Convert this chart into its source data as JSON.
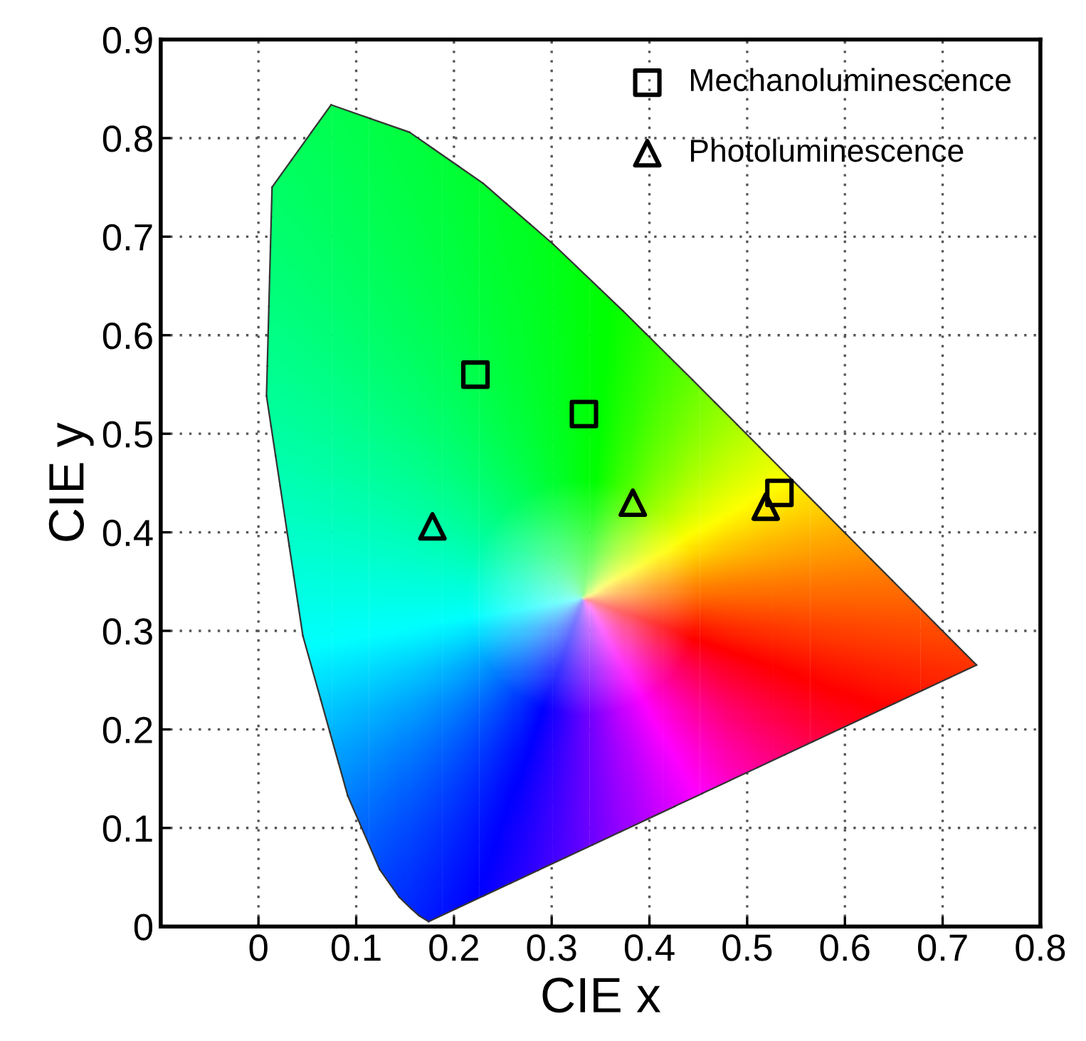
{
  "chart_data": {
    "type": "scatter",
    "xlabel": "CIE x",
    "ylabel": "CIE y",
    "xlim": [
      -0.1,
      0.8
    ],
    "ylim": [
      0,
      0.9
    ],
    "xticks": [
      0,
      0.1,
      0.2,
      0.3,
      0.4,
      0.5,
      0.6,
      0.7,
      0.8
    ],
    "yticks": [
      0,
      0.1,
      0.2,
      0.3,
      0.4,
      0.5,
      0.6,
      0.7,
      0.8,
      0.9
    ],
    "grid": true,
    "legend": "top right",
    "series": [
      {
        "name": "Mechanoluminescence",
        "color": "#000000",
        "marker": "square",
        "x": [
          0.222,
          0.333,
          0.533
        ],
        "values": [
          0.56,
          0.52,
          0.44
        ]
      },
      {
        "name": "Photoluminescence",
        "color": "#000000",
        "marker": "triangle",
        "x": [
          0.178,
          0.383,
          0.519
        ],
        "values": [
          0.406,
          0.43,
          0.426
        ]
      }
    ]
  }
}
